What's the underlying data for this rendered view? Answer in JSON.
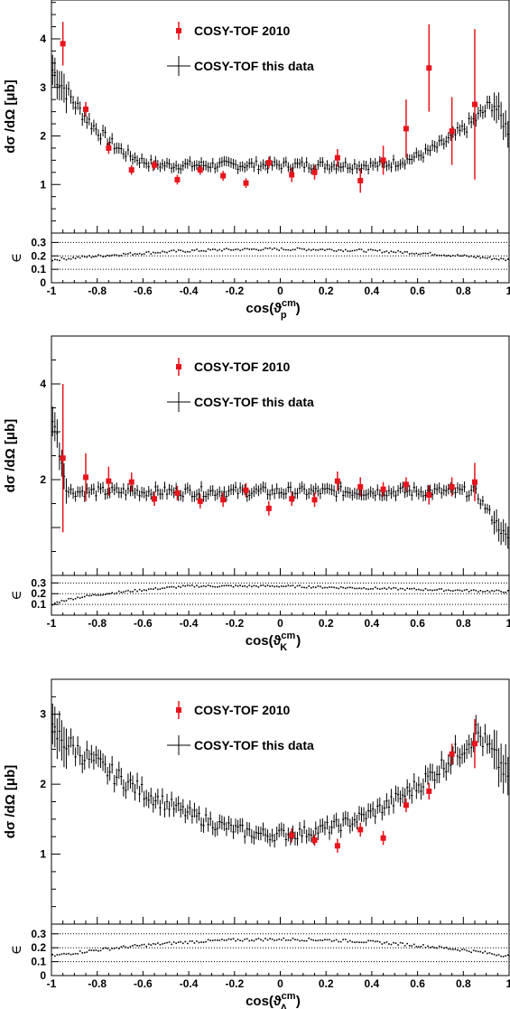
{
  "chart_data": [
    {
      "type": "scatter",
      "ylabel": "dσ /dΩ [μb]",
      "xlabel_main": "cos(ϑ",
      "xlabel_sup": "cm",
      "xlabel_sub": "p",
      "xlabel_close": ")",
      "eps_label": "∈",
      "xlim": [
        -1,
        1
      ],
      "ylim": [
        0,
        4.8
      ],
      "yticks": [
        "1",
        "2",
        "3",
        "4"
      ],
      "xticks": [
        "-1",
        "-0.8",
        "-0.6",
        "-0.4",
        "-0.2",
        "0",
        "0.2",
        "0.4",
        "0.6",
        "0.8",
        "1"
      ],
      "eps_ylim": [
        0,
        0.37
      ],
      "eps_yticks": [
        "0",
        "0.1",
        "0.2",
        "0.3"
      ],
      "eps_dotted": [
        0.1,
        0.2,
        0.3
      ],
      "legend": [
        "COSY-TOF 2010",
        "COSY-TOF this data"
      ],
      "colors": {
        "ref": "#e8141c",
        "data": "#000000"
      },
      "ref_series": {
        "name": "COSY-TOF 2010",
        "x": [
          -0.95,
          -0.85,
          -0.75,
          -0.65,
          -0.55,
          -0.45,
          -0.35,
          -0.25,
          -0.15,
          -0.05,
          0.05,
          0.15,
          0.25,
          0.35,
          0.45,
          0.55,
          0.65,
          0.75,
          0.85
        ],
        "y": [
          3.9,
          2.55,
          1.75,
          1.3,
          1.4,
          1.1,
          1.3,
          1.18,
          1.03,
          1.45,
          1.2,
          1.25,
          1.55,
          1.08,
          1.5,
          2.15,
          3.4,
          2.1,
          2.65
        ],
        "err": [
          0.45,
          0.15,
          0.12,
          0.1,
          0.1,
          0.1,
          0.1,
          0.1,
          0.1,
          0.12,
          0.15,
          0.15,
          0.18,
          0.25,
          0.3,
          0.6,
          0.9,
          0.7,
          1.55
        ]
      },
      "main_series": {
        "name": "COSY-TOF this data",
        "shape": "asym-bathtub",
        "params": {
          "a": 1.4,
          "b": 0.0,
          "c": 0.35,
          "d": 1.5,
          "e": 0.9,
          "f": 1.45,
          "g": 1.5
        }
      },
      "eff_series": {
        "shape": "arch",
        "min": 0.17,
        "max": 0.25
      }
    },
    {
      "type": "scatter",
      "ylabel": "dσ /dΩ [μb]",
      "xlabel_main": "cos(ϑ",
      "xlabel_sup": "cm",
      "xlabel_sub": "K",
      "xlabel_close": ")",
      "eps_label": "∈",
      "xlim": [
        -1,
        1
      ],
      "ylim": [
        0,
        5
      ],
      "yticks": [
        "2",
        "4"
      ],
      "xticks": [
        "-1",
        "-0.8",
        "-0.6",
        "-0.4",
        "-0.2",
        "0",
        "0.2",
        "0.4",
        "0.6",
        "0.8",
        "1"
      ],
      "eps_ylim": [
        0,
        0.37
      ],
      "eps_yticks": [
        "0.1",
        "0.2",
        "0.3"
      ],
      "eps_dotted": [
        0.1,
        0.2,
        0.3
      ],
      "legend": [
        "COSY-TOF 2010",
        "COSY-TOF this data"
      ],
      "colors": {
        "ref": "#e8141c",
        "data": "#000000"
      },
      "ref_series": {
        "name": "COSY-TOF 2010",
        "x": [
          -0.95,
          -0.85,
          -0.75,
          -0.65,
          -0.55,
          -0.45,
          -0.35,
          -0.25,
          -0.15,
          -0.05,
          0.05,
          0.15,
          0.25,
          0.35,
          0.45,
          0.55,
          0.65,
          0.75,
          0.85
        ],
        "y": [
          2.45,
          2.05,
          1.97,
          1.95,
          1.6,
          1.72,
          1.55,
          1.58,
          1.78,
          1.4,
          1.6,
          1.58,
          1.97,
          1.85,
          1.8,
          1.9,
          1.68,
          1.85,
          1.95
        ],
        "err": [
          1.55,
          0.5,
          0.3,
          0.2,
          0.15,
          0.15,
          0.15,
          0.15,
          0.15,
          0.15,
          0.15,
          0.15,
          0.2,
          0.2,
          0.15,
          0.15,
          0.2,
          0.2,
          0.4
        ]
      },
      "main_series": {
        "name": "COSY-TOF this data",
        "shape": "flat",
        "params": {
          "level": 1.75
        }
      },
      "eff_series": {
        "shape": "rise",
        "min": 0.08,
        "max": 0.27
      }
    },
    {
      "type": "scatter",
      "ylabel": "dσ /dΩ [μb]",
      "xlabel_main": "cos(ϑ",
      "xlabel_sup": "cm",
      "xlabel_sub": "Λ",
      "xlabel_close": ")",
      "eps_label": "∈",
      "xlim": [
        -1,
        1
      ],
      "ylim": [
        0,
        3.5
      ],
      "yticks": [
        "1",
        "2",
        "3"
      ],
      "xticks": [
        "-1",
        "-0.8",
        "-0.6",
        "-0.4",
        "-0.2",
        "0",
        "0.2",
        "0.4",
        "0.6",
        "0.8",
        "1"
      ],
      "eps_ylim": [
        0,
        0.37
      ],
      "eps_yticks": [
        "0",
        "0.1",
        "0.2",
        "0.3"
      ],
      "eps_dotted": [
        0.1,
        0.2,
        0.3
      ],
      "legend": [
        "COSY-TOF 2010",
        "COSY-TOF this data"
      ],
      "colors": {
        "ref": "#e8141c",
        "data": "#000000"
      },
      "ref_series": {
        "name": "COSY-TOF 2010",
        "x": [
          0.05,
          0.15,
          0.25,
          0.35,
          0.45,
          0.55,
          0.65,
          0.75,
          0.85
        ],
        "y": [
          1.27,
          1.2,
          1.12,
          1.35,
          1.23,
          1.7,
          1.9,
          2.43,
          2.58
        ],
        "err": [
          0.1,
          0.08,
          0.1,
          0.1,
          0.1,
          0.1,
          0.12,
          0.15,
          0.35
        ]
      },
      "main_series": {
        "name": "COSY-TOF this data",
        "shape": "bowl",
        "params": {
          "left": 2.75,
          "min": 1.28,
          "minx": -0.05,
          "peak": 2.75,
          "peakx": 0.86,
          "end": 2.1
        }
      },
      "eff_series": {
        "shape": "arch",
        "min": 0.14,
        "max": 0.26
      }
    }
  ]
}
